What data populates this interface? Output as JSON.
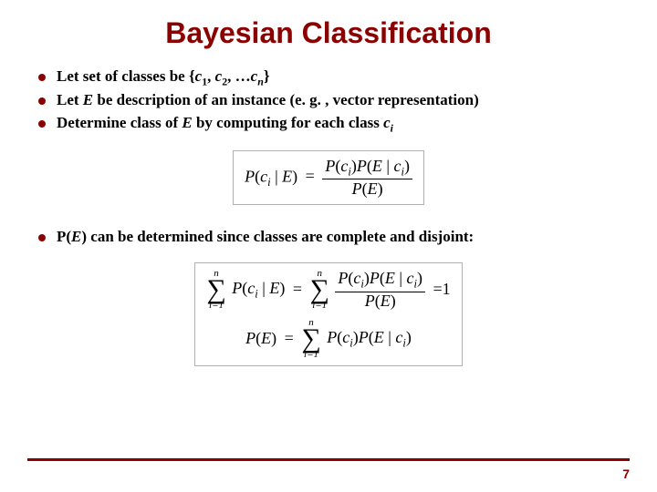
{
  "title": {
    "text": "Bayesian Classification",
    "color": "#8b0000",
    "fontsize": 32
  },
  "bullet_style": {
    "dot_color": "#8b0000",
    "text_fontsize": 17
  },
  "group1": [
    {
      "pre": "Let set of classes be {",
      "c": "c",
      "s1": "1",
      "mid1": ", ",
      "c2": "c",
      "s2": "2",
      "mid2": ", …",
      "cn": "c",
      "sn": "n",
      "post": "}"
    },
    {
      "plain_a": "Let ",
      "E": "E",
      "plain_b": " be description of an instance (e. g. , vector representation)"
    },
    {
      "plain_a": "Determine class of ",
      "E": "E",
      "plain_b": " by computing for each class ",
      "c": "c",
      "si": "i"
    }
  ],
  "group2": [
    {
      "pre": "P(",
      "E": "E",
      "post": ") can be determined since classes are complete and disjoint:"
    }
  ],
  "eq1": {
    "lhs_P": "P",
    "lhs_c": "c",
    "lhs_i": "i",
    "lhs_bar": " | ",
    "lhs_E": "E",
    "eq": "=",
    "num_Pc": "P",
    "num_c": "c",
    "num_i": "i",
    "num_PE": "P",
    "num_E": "E",
    "num_bar": " | ",
    "num_c2": "c",
    "num_i2": "i",
    "den_P": "P",
    "den_E": "E"
  },
  "eq2": {
    "upper": "n",
    "lower": "i=1",
    "P": "P",
    "c": "c",
    "i": "i",
    "bar": " | ",
    "E": "E",
    "eq": "=",
    "eq1": "=1"
  },
  "eq3": {
    "P": "P",
    "E": "E",
    "eq": "=",
    "upper": "n",
    "lower": "i=1",
    "c": "c",
    "i": "i",
    "bar": " | "
  },
  "eqbox_border": "#b0b0b0",
  "footer": {
    "line_color": "#8b0000",
    "page": "7",
    "page_color": "#8b0000"
  }
}
